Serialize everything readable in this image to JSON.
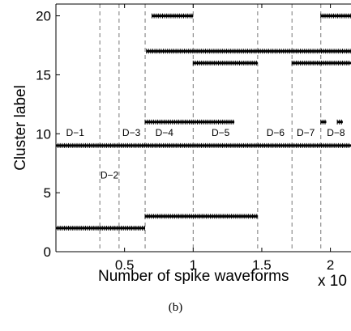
{
  "chart_data": {
    "type": "scatter",
    "xlabel": "Number of spike waveforms",
    "x_multiplier_label": "x 10",
    "ylabel": "Cluster label",
    "xlim": [
      0,
      2.15
    ],
    "ylim": [
      0,
      21
    ],
    "x_ticks": [
      {
        "value": 0.5,
        "label": "0.5"
      },
      {
        "value": 1,
        "label": "1"
      },
      {
        "value": 1.5,
        "label": "1.5"
      },
      {
        "value": 2,
        "label": "2"
      }
    ],
    "y_ticks": [
      {
        "value": 0,
        "label": "0"
      },
      {
        "value": 5,
        "label": "5"
      },
      {
        "value": 10,
        "label": "10"
      },
      {
        "value": 15,
        "label": "15"
      },
      {
        "value": 20,
        "label": "20"
      }
    ],
    "grid": false,
    "boundaries": [
      0.32,
      0.46,
      0.65,
      1.0,
      1.47,
      1.72,
      1.93
    ],
    "segment_labels": [
      {
        "label": "D−1",
        "x": 0.14,
        "y": 9.8
      },
      {
        "label": "D−2",
        "x": 0.39,
        "y": 6.2
      },
      {
        "label": "D−3",
        "x": 0.55,
        "y": 9.8
      },
      {
        "label": "D−4",
        "x": 0.79,
        "y": 9.8
      },
      {
        "label": "D−5",
        "x": 1.2,
        "y": 9.8
      },
      {
        "label": "D−6",
        "x": 1.6,
        "y": 9.8
      },
      {
        "label": "D−7",
        "x": 1.82,
        "y": 9.8
      },
      {
        "label": "D−8",
        "x": 2.04,
        "y": 9.8
      }
    ],
    "series": [
      {
        "values": [
          {
            "x_start": 0.0,
            "x_end": 2.15,
            "y": 9
          }
        ]
      },
      {
        "values": [
          {
            "x_start": 0.0,
            "x_end": 0.65,
            "y": 2
          }
        ]
      },
      {
        "values": [
          {
            "x_start": 0.65,
            "x_end": 1.47,
            "y": 3
          }
        ]
      },
      {
        "values": [
          {
            "x_start": 0.65,
            "x_end": 1.0,
            "y": 11
          },
          {
            "x_start": 1.0,
            "x_end": 1.3,
            "y": 11
          },
          {
            "x_start": 1.93,
            "x_end": 1.97,
            "y": 11
          },
          {
            "x_start": 2.05,
            "x_end": 2.09,
            "y": 11
          }
        ]
      },
      {
        "values": [
          {
            "x_start": 1.0,
            "x_end": 1.47,
            "y": 16
          },
          {
            "x_start": 1.72,
            "x_end": 2.15,
            "y": 16
          }
        ]
      },
      {
        "values": [
          {
            "x_start": 0.66,
            "x_end": 2.15,
            "y": 17
          }
        ]
      },
      {
        "values": [
          {
            "x_start": 0.7,
            "x_end": 1.0,
            "y": 20
          },
          {
            "x_start": 1.93,
            "x_end": 2.15,
            "y": 20
          }
        ]
      }
    ]
  },
  "caption": "(b)"
}
